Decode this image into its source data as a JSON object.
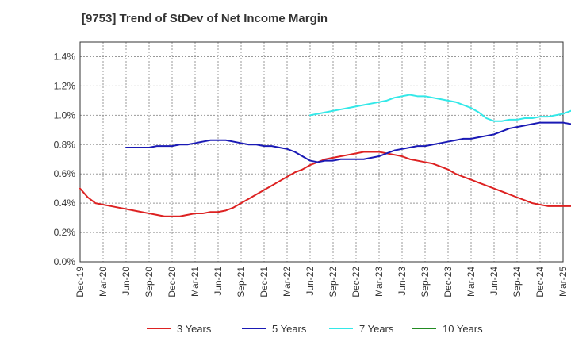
{
  "chart_data": {
    "type": "line",
    "title": "[9753]  Trend of StDev of Net Income Margin",
    "xlabel": "",
    "ylabel": "",
    "x_tick_labels": [
      "Dec-19",
      "Mar-20",
      "Jun-20",
      "Sep-20",
      "Dec-20",
      "Mar-21",
      "Jun-21",
      "Sep-21",
      "Dec-21",
      "Mar-22",
      "Jun-22",
      "Sep-22",
      "Dec-22",
      "Mar-23",
      "Jun-23",
      "Sep-23",
      "Dec-23",
      "Mar-24",
      "Jun-24",
      "Sep-24",
      "Dec-24",
      "Mar-25"
    ],
    "y_tick_labels": [
      "0.0%",
      "0.2%",
      "0.4%",
      "0.6%",
      "0.8%",
      "1.0%",
      "1.2%",
      "1.4%"
    ],
    "ylim": [
      0,
      1.5
    ],
    "y_unit": "%",
    "grid": true,
    "legend_position": "bottom",
    "series": [
      {
        "name": "3 Years",
        "color": "#dd2222",
        "start_index": 0,
        "values": [
          0.5,
          0.44,
          0.4,
          0.39,
          0.38,
          0.37,
          0.36,
          0.35,
          0.34,
          0.33,
          0.32,
          0.31,
          0.31,
          0.31,
          0.32,
          0.33,
          0.33,
          0.34,
          0.34,
          0.35,
          0.37,
          0.4,
          0.43,
          0.46,
          0.49,
          0.52,
          0.55,
          0.58,
          0.61,
          0.63,
          0.66,
          0.68,
          0.7,
          0.71,
          0.72,
          0.73,
          0.74,
          0.75,
          0.75,
          0.75,
          0.74,
          0.73,
          0.72,
          0.7,
          0.69,
          0.68,
          0.67,
          0.65,
          0.63,
          0.6,
          0.58,
          0.56,
          0.54,
          0.52,
          0.5,
          0.48,
          0.46,
          0.44,
          0.42,
          0.4,
          0.39,
          0.38,
          0.38,
          0.38,
          0.38,
          0.39,
          0.4,
          0.42,
          0.44,
          0.46,
          0.48,
          0.51
        ]
      },
      {
        "name": "5 Years",
        "color": "#1a1ab5",
        "start_index": 6,
        "values": [
          0.78,
          0.78,
          0.78,
          0.78,
          0.79,
          0.79,
          0.79,
          0.8,
          0.8,
          0.81,
          0.82,
          0.83,
          0.83,
          0.83,
          0.82,
          0.81,
          0.8,
          0.8,
          0.79,
          0.79,
          0.78,
          0.77,
          0.75,
          0.72,
          0.69,
          0.68,
          0.69,
          0.69,
          0.7,
          0.7,
          0.7,
          0.7,
          0.71,
          0.72,
          0.74,
          0.76,
          0.77,
          0.78,
          0.79,
          0.79,
          0.8,
          0.81,
          0.82,
          0.83,
          0.84,
          0.84,
          0.85,
          0.86,
          0.87,
          0.89,
          0.91,
          0.92,
          0.93,
          0.94,
          0.95,
          0.95,
          0.95,
          0.95,
          0.94,
          0.93
        ]
      },
      {
        "name": "7 Years",
        "color": "#33e8e8",
        "start_index": 30,
        "values": [
          1.0,
          1.01,
          1.02,
          1.03,
          1.04,
          1.05,
          1.06,
          1.07,
          1.08,
          1.09,
          1.1,
          1.12,
          1.13,
          1.14,
          1.13,
          1.13,
          1.12,
          1.11,
          1.1,
          1.09,
          1.07,
          1.05,
          1.02,
          0.98,
          0.96,
          0.96,
          0.97,
          0.97,
          0.98,
          0.98,
          0.99,
          0.99,
          1.0,
          1.01,
          1.03,
          1.05
        ]
      },
      {
        "name": "10 Years",
        "color": "#228B22",
        "start_index": 0,
        "values": []
      }
    ]
  }
}
